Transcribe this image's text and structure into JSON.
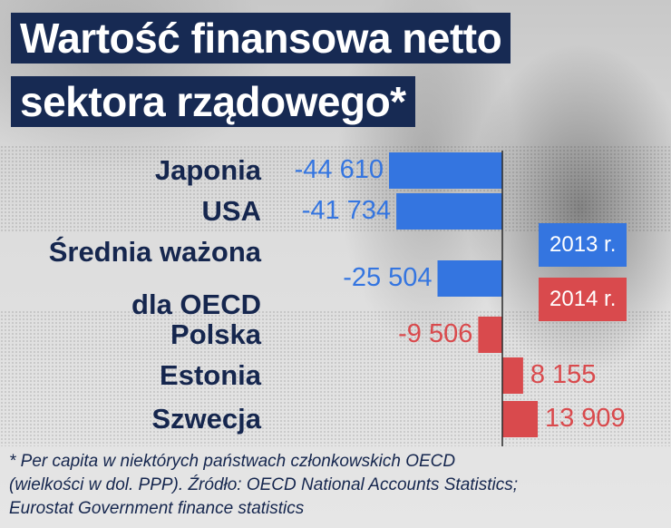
{
  "title_lines": [
    "Wartość finansowa netto",
    "sektora rządowego*"
  ],
  "chart_data": {
    "type": "bar",
    "orientation": "horizontal",
    "categories": [
      {
        "lines": [
          "Japonia"
        ]
      },
      {
        "lines": [
          "USA"
        ]
      },
      {
        "lines": [
          "Średnia ważona",
          "dla OECD"
        ]
      },
      {
        "lines": [
          "Polska"
        ]
      },
      {
        "lines": [
          "Estonia"
        ]
      },
      {
        "lines": [
          "Szwecja"
        ]
      }
    ],
    "values": [
      -44610,
      -41734,
      -25504,
      -9506,
      8155,
      13909
    ],
    "value_labels": [
      "-44 610",
      "-41 734",
      "-25 504",
      "-9 506",
      "8 155",
      "13 909"
    ],
    "years": [
      "2013 r.",
      "2013 r.",
      "2013 r.",
      "2014 r.",
      "2014 r.",
      "2014 r."
    ],
    "legend": [
      "2013 r.",
      "2014 r."
    ],
    "colors": {
      "2013 r.": "#3475e0",
      "2014 r.": "#d94a4d"
    },
    "legend_placement": "right"
  },
  "footnote_lines": [
    "* Per capita w niektórych państwach członkowskich OECD",
    "(wielkości w dol. PPP). Źródło: OECD National Accounts Statistics;",
    "Eurostat Government finance statistics"
  ],
  "colors": {
    "title_bg": "#172a53",
    "label_text": "#15264e"
  }
}
